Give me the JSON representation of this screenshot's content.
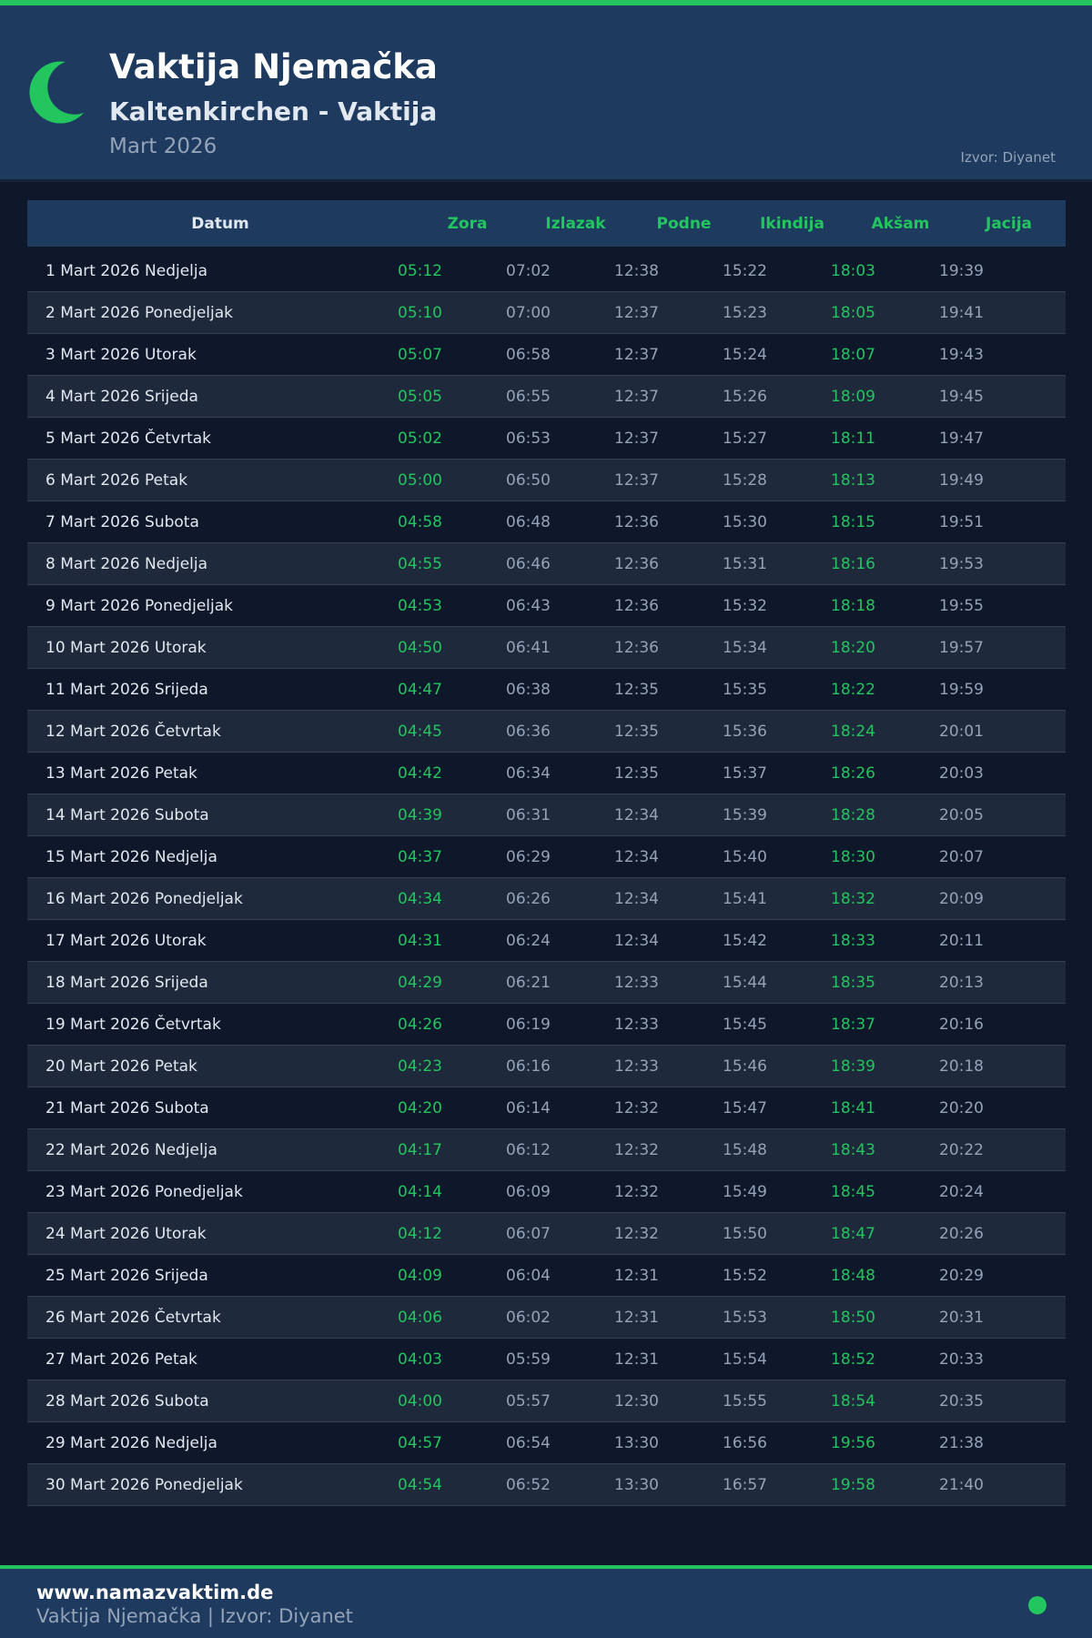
{
  "header": {
    "title": "Vaktija Njemačka",
    "subtitle": "Kaltenkirchen - Vaktija",
    "month": "Mart 2026",
    "source": "Izvor: Diyanet",
    "icon": "crescent-moon-icon"
  },
  "colors": {
    "accent": "#22c55e",
    "header_bg": "#1e3a5f",
    "page_bg": "#0f172a"
  },
  "table": {
    "columns": [
      "Datum",
      "Zora",
      "Izlazak",
      "Podne",
      "Ikindija",
      "Akšam",
      "Jacija"
    ],
    "rows": [
      [
        "1 Mart 2026 Nedjelja",
        "05:12",
        "07:02",
        "12:38",
        "15:22",
        "18:03",
        "19:39"
      ],
      [
        "2 Mart 2026 Ponedjeljak",
        "05:10",
        "07:00",
        "12:37",
        "15:23",
        "18:05",
        "19:41"
      ],
      [
        "3 Mart 2026 Utorak",
        "05:07",
        "06:58",
        "12:37",
        "15:24",
        "18:07",
        "19:43"
      ],
      [
        "4 Mart 2026 Srijeda",
        "05:05",
        "06:55",
        "12:37",
        "15:26",
        "18:09",
        "19:45"
      ],
      [
        "5 Mart 2026 Četvrtak",
        "05:02",
        "06:53",
        "12:37",
        "15:27",
        "18:11",
        "19:47"
      ],
      [
        "6 Mart 2026 Petak",
        "05:00",
        "06:50",
        "12:37",
        "15:28",
        "18:13",
        "19:49"
      ],
      [
        "7 Mart 2026 Subota",
        "04:58",
        "06:48",
        "12:36",
        "15:30",
        "18:15",
        "19:51"
      ],
      [
        "8 Mart 2026 Nedjelja",
        "04:55",
        "06:46",
        "12:36",
        "15:31",
        "18:16",
        "19:53"
      ],
      [
        "9 Mart 2026 Ponedjeljak",
        "04:53",
        "06:43",
        "12:36",
        "15:32",
        "18:18",
        "19:55"
      ],
      [
        "10 Mart 2026 Utorak",
        "04:50",
        "06:41",
        "12:36",
        "15:34",
        "18:20",
        "19:57"
      ],
      [
        "11 Mart 2026 Srijeda",
        "04:47",
        "06:38",
        "12:35",
        "15:35",
        "18:22",
        "19:59"
      ],
      [
        "12 Mart 2026 Četvrtak",
        "04:45",
        "06:36",
        "12:35",
        "15:36",
        "18:24",
        "20:01"
      ],
      [
        "13 Mart 2026 Petak",
        "04:42",
        "06:34",
        "12:35",
        "15:37",
        "18:26",
        "20:03"
      ],
      [
        "14 Mart 2026 Subota",
        "04:39",
        "06:31",
        "12:34",
        "15:39",
        "18:28",
        "20:05"
      ],
      [
        "15 Mart 2026 Nedjelja",
        "04:37",
        "06:29",
        "12:34",
        "15:40",
        "18:30",
        "20:07"
      ],
      [
        "16 Mart 2026 Ponedjeljak",
        "04:34",
        "06:26",
        "12:34",
        "15:41",
        "18:32",
        "20:09"
      ],
      [
        "17 Mart 2026 Utorak",
        "04:31",
        "06:24",
        "12:34",
        "15:42",
        "18:33",
        "20:11"
      ],
      [
        "18 Mart 2026 Srijeda",
        "04:29",
        "06:21",
        "12:33",
        "15:44",
        "18:35",
        "20:13"
      ],
      [
        "19 Mart 2026 Četvrtak",
        "04:26",
        "06:19",
        "12:33",
        "15:45",
        "18:37",
        "20:16"
      ],
      [
        "20 Mart 2026 Petak",
        "04:23",
        "06:16",
        "12:33",
        "15:46",
        "18:39",
        "20:18"
      ],
      [
        "21 Mart 2026 Subota",
        "04:20",
        "06:14",
        "12:32",
        "15:47",
        "18:41",
        "20:20"
      ],
      [
        "22 Mart 2026 Nedjelja",
        "04:17",
        "06:12",
        "12:32",
        "15:48",
        "18:43",
        "20:22"
      ],
      [
        "23 Mart 2026 Ponedjeljak",
        "04:14",
        "06:09",
        "12:32",
        "15:49",
        "18:45",
        "20:24"
      ],
      [
        "24 Mart 2026 Utorak",
        "04:12",
        "06:07",
        "12:32",
        "15:50",
        "18:47",
        "20:26"
      ],
      [
        "25 Mart 2026 Srijeda",
        "04:09",
        "06:04",
        "12:31",
        "15:52",
        "18:48",
        "20:29"
      ],
      [
        "26 Mart 2026 Četvrtak",
        "04:06",
        "06:02",
        "12:31",
        "15:53",
        "18:50",
        "20:31"
      ],
      [
        "27 Mart 2026 Petak",
        "04:03",
        "05:59",
        "12:31",
        "15:54",
        "18:52",
        "20:33"
      ],
      [
        "28 Mart 2026 Subota",
        "04:00",
        "05:57",
        "12:30",
        "15:55",
        "18:54",
        "20:35"
      ],
      [
        "29 Mart 2026 Nedjelja",
        "04:57",
        "06:54",
        "13:30",
        "16:56",
        "19:56",
        "21:38"
      ],
      [
        "30 Mart 2026 Ponedjeljak",
        "04:54",
        "06:52",
        "13:30",
        "16:57",
        "19:58",
        "21:40"
      ]
    ]
  },
  "footer": {
    "url": "www.namazvaktim.de",
    "subtitle": "Vaktija Njemačka | Izvor: Diyanet"
  }
}
